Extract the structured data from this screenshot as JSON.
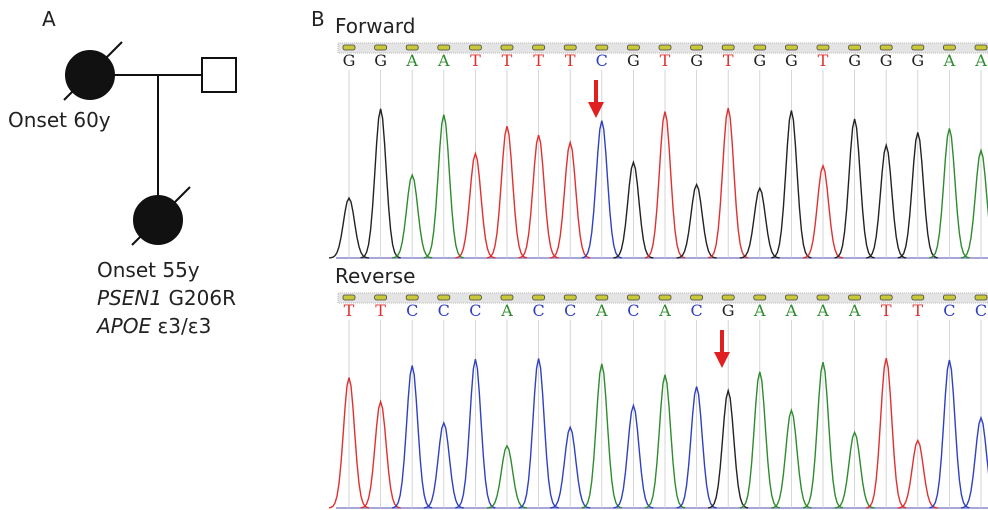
{
  "panel_a": {
    "label": "A",
    "individuals": [
      {
        "onset": "Onset 60y"
      },
      {
        "onset": "Onset 55y",
        "gene": "PSEN1",
        "mutation": "G206R",
        "apoe_gene": "APOE",
        "apoe_genotype": "ε3/ε3"
      }
    ]
  },
  "panel_b": {
    "label": "B",
    "traces": [
      {
        "title": "Forward",
        "bases": [
          "G",
          "G",
          "A",
          "A",
          "T",
          "T",
          "T",
          "T",
          "C",
          "G",
          "T",
          "G",
          "T",
          "G",
          "G",
          "T",
          "G",
          "G",
          "G",
          "A",
          "A"
        ]
      },
      {
        "title": "Reverse",
        "bases": [
          "T",
          "T",
          "C",
          "C",
          "C",
          "A",
          "C",
          "C",
          "A",
          "C",
          "A",
          "C",
          "G",
          "A",
          "A",
          "A",
          "A",
          "T",
          "T",
          "C",
          "C"
        ]
      }
    ]
  }
}
